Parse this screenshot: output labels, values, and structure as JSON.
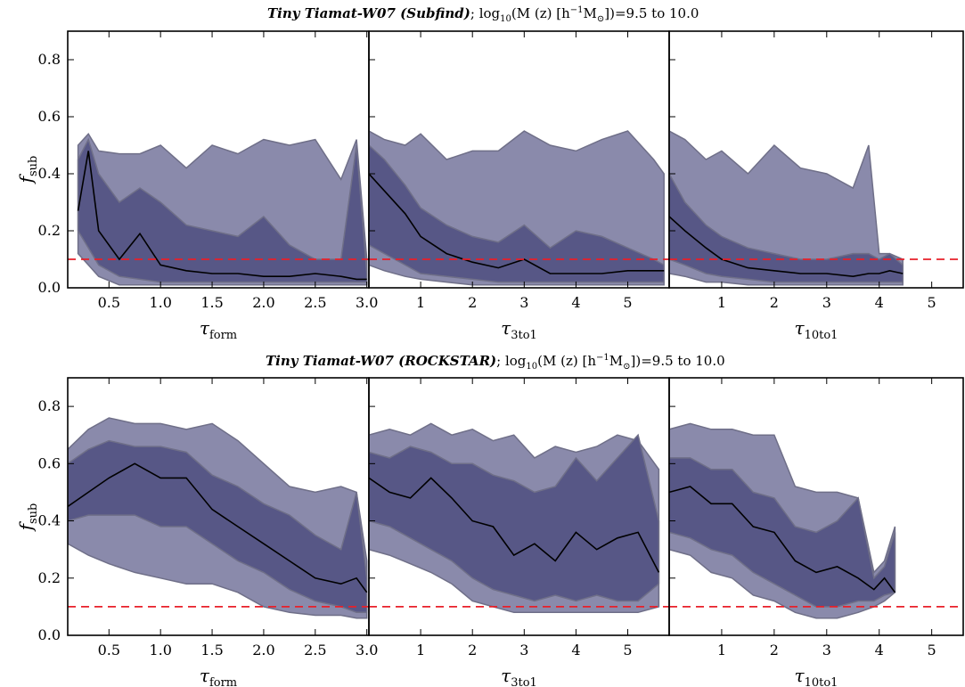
{
  "rows": [
    {
      "title_name": "Tiny Tiamat-W07 (Subfind)",
      "title_sep": "; ",
      "title_mass_label": "log",
      "title_mass_sub": "10",
      "title_mass_expr": "(M (z) [h",
      "title_mass_sup": "−1",
      "title_mass_tail": "M",
      "title_mass_sun": "⊙",
      "title_close": "])",
      "title_range": "=9.5 to 10.0",
      "ylabel": "f",
      "ylabel_sub": "sub"
    },
    {
      "title_name": "Tiny Tiamat-W07 (ROCKSTAR)",
      "title_sep": "; ",
      "title_mass_label": "log",
      "title_mass_sub": "10",
      "title_mass_expr": "(M (z) [h",
      "title_mass_sup": "−1",
      "title_mass_tail": "M",
      "title_mass_sun": "⊙",
      "title_close": "])",
      "title_range": "=9.5 to 10.0",
      "ylabel": "f",
      "ylabel_sub": "sub"
    }
  ],
  "chart_data": [
    {
      "type": "area",
      "panel": "top-left",
      "xlabel": "τ",
      "xlabel_sub": "form",
      "xlim": [
        0.1,
        3.02
      ],
      "ylim": [
        0,
        0.9
      ],
      "xticks": [
        "0.5",
        "1.0",
        "1.5",
        "2.0",
        "2.5",
        "3.0"
      ],
      "xtick_values": [
        0.5,
        1.0,
        1.5,
        2.0,
        2.5,
        3.0
      ],
      "yticks": [
        "0.0",
        "0.2",
        "0.4",
        "0.6",
        "0.8"
      ],
      "ytick_values": [
        0.0,
        0.2,
        0.4,
        0.6,
        0.8
      ],
      "reference_line": 0.1,
      "x": [
        0.2,
        0.3,
        0.4,
        0.6,
        0.8,
        1.0,
        1.25,
        1.5,
        1.75,
        2.0,
        2.25,
        2.5,
        2.75,
        2.9,
        3.0
      ],
      "outer_low": [
        0.12,
        0.08,
        0.04,
        0.01,
        0.01,
        0.01,
        0.01,
        0.01,
        0.01,
        0.01,
        0.01,
        0.01,
        0.01,
        0.01,
        0.01
      ],
      "outer_high": [
        0.5,
        0.54,
        0.48,
        0.47,
        0.47,
        0.5,
        0.42,
        0.5,
        0.47,
        0.52,
        0.5,
        0.52,
        0.38,
        0.52,
        0.1
      ],
      "inner_low": [
        0.2,
        0.14,
        0.08,
        0.04,
        0.03,
        0.02,
        0.02,
        0.02,
        0.02,
        0.02,
        0.02,
        0.02,
        0.02,
        0.02,
        0.02
      ],
      "inner_high": [
        0.45,
        0.52,
        0.4,
        0.3,
        0.35,
        0.3,
        0.22,
        0.2,
        0.18,
        0.25,
        0.15,
        0.1,
        0.1,
        0.5,
        0.05
      ],
      "median": [
        0.27,
        0.48,
        0.2,
        0.1,
        0.19,
        0.08,
        0.06,
        0.05,
        0.05,
        0.04,
        0.04,
        0.05,
        0.04,
        0.03,
        0.03
      ]
    },
    {
      "type": "area",
      "panel": "top-middle",
      "xlabel": "τ",
      "xlabel_sub": "3to1",
      "xlim": [
        0.0,
        5.8
      ],
      "ylim": [
        0,
        0.9
      ],
      "xticks": [
        "1",
        "2",
        "3",
        "4",
        "5"
      ],
      "xtick_values": [
        1,
        2,
        3,
        4,
        5
      ],
      "reference_line": 0.1,
      "x": [
        0.0,
        0.3,
        0.7,
        1.0,
        1.5,
        2.0,
        2.5,
        3.0,
        3.5,
        4.0,
        4.5,
        5.0,
        5.5,
        5.7
      ],
      "outer_low": [
        0.08,
        0.06,
        0.04,
        0.03,
        0.02,
        0.01,
        0.01,
        0.01,
        0.01,
        0.01,
        0.01,
        0.01,
        0.01,
        0.01
      ],
      "outer_high": [
        0.55,
        0.52,
        0.5,
        0.54,
        0.45,
        0.48,
        0.48,
        0.55,
        0.5,
        0.48,
        0.52,
        0.55,
        0.45,
        0.4
      ],
      "inner_low": [
        0.15,
        0.12,
        0.08,
        0.05,
        0.04,
        0.03,
        0.02,
        0.02,
        0.02,
        0.02,
        0.02,
        0.02,
        0.02,
        0.02
      ],
      "inner_high": [
        0.5,
        0.45,
        0.36,
        0.28,
        0.22,
        0.18,
        0.16,
        0.22,
        0.14,
        0.2,
        0.18,
        0.14,
        0.1,
        0.08
      ],
      "median": [
        0.4,
        0.34,
        0.26,
        0.18,
        0.12,
        0.09,
        0.07,
        0.1,
        0.05,
        0.05,
        0.05,
        0.06,
        0.06,
        0.06
      ]
    },
    {
      "type": "area",
      "panel": "top-right",
      "xlabel": "τ",
      "xlabel_sub": "10to1",
      "xlim": [
        0.0,
        5.6
      ],
      "ylim": [
        0,
        0.9
      ],
      "xticks": [
        "1",
        "2",
        "3",
        "4",
        "5"
      ],
      "xtick_values": [
        1,
        2,
        3,
        4,
        5
      ],
      "reference_line": 0.1,
      "x": [
        0.0,
        0.3,
        0.7,
        1.0,
        1.5,
        2.0,
        2.5,
        3.0,
        3.5,
        3.8,
        4.0,
        4.2,
        4.45
      ],
      "outer_low": [
        0.05,
        0.04,
        0.02,
        0.02,
        0.01,
        0.01,
        0.01,
        0.01,
        0.01,
        0.01,
        0.01,
        0.01,
        0.01
      ],
      "outer_high": [
        0.55,
        0.52,
        0.45,
        0.48,
        0.4,
        0.5,
        0.42,
        0.4,
        0.35,
        0.5,
        0.12,
        0.12,
        0.1
      ],
      "inner_low": [
        0.1,
        0.08,
        0.05,
        0.04,
        0.03,
        0.02,
        0.02,
        0.02,
        0.02,
        0.02,
        0.02,
        0.02,
        0.02
      ],
      "inner_high": [
        0.4,
        0.3,
        0.22,
        0.18,
        0.14,
        0.12,
        0.1,
        0.1,
        0.12,
        0.12,
        0.1,
        0.12,
        0.08
      ],
      "median": [
        0.25,
        0.2,
        0.14,
        0.1,
        0.07,
        0.06,
        0.05,
        0.05,
        0.04,
        0.05,
        0.05,
        0.06,
        0.05
      ]
    },
    {
      "type": "area",
      "panel": "bottom-left",
      "xlabel": "τ",
      "xlabel_sub": "form",
      "xlim": [
        0.1,
        3.02
      ],
      "ylim": [
        0,
        0.9
      ],
      "xticks": [
        "0.5",
        "1.0",
        "1.5",
        "2.0",
        "2.5",
        "3.0"
      ],
      "xtick_values": [
        0.5,
        1.0,
        1.5,
        2.0,
        2.5,
        3.0
      ],
      "yticks": [
        "0.0",
        "0.2",
        "0.4",
        "0.6",
        "0.8"
      ],
      "ytick_values": [
        0.0,
        0.2,
        0.4,
        0.6,
        0.8
      ],
      "reference_line": 0.1,
      "x": [
        0.1,
        0.3,
        0.5,
        0.75,
        1.0,
        1.25,
        1.5,
        1.75,
        2.0,
        2.25,
        2.5,
        2.75,
        2.9,
        3.0
      ],
      "outer_low": [
        0.32,
        0.28,
        0.25,
        0.22,
        0.2,
        0.18,
        0.18,
        0.15,
        0.1,
        0.08,
        0.07,
        0.07,
        0.06,
        0.06
      ],
      "outer_high": [
        0.65,
        0.72,
        0.76,
        0.74,
        0.74,
        0.72,
        0.74,
        0.68,
        0.6,
        0.52,
        0.5,
        0.52,
        0.5,
        0.26
      ],
      "inner_low": [
        0.4,
        0.42,
        0.42,
        0.42,
        0.38,
        0.38,
        0.32,
        0.26,
        0.22,
        0.16,
        0.12,
        0.1,
        0.08,
        0.08
      ],
      "inner_high": [
        0.6,
        0.65,
        0.68,
        0.66,
        0.66,
        0.64,
        0.56,
        0.52,
        0.46,
        0.42,
        0.35,
        0.3,
        0.5,
        0.2
      ],
      "median": [
        0.45,
        0.5,
        0.55,
        0.6,
        0.55,
        0.55,
        0.44,
        0.38,
        0.32,
        0.26,
        0.2,
        0.18,
        0.2,
        0.15
      ]
    },
    {
      "type": "area",
      "panel": "bottom-middle",
      "xlabel": "τ",
      "xlabel_sub": "3to1",
      "xlim": [
        0.0,
        5.8
      ],
      "ylim": [
        0,
        0.9
      ],
      "xticks": [
        "1",
        "2",
        "3",
        "4",
        "5"
      ],
      "xtick_values": [
        1,
        2,
        3,
        4,
        5
      ],
      "reference_line": 0.1,
      "x": [
        0.0,
        0.4,
        0.8,
        1.2,
        1.6,
        2.0,
        2.4,
        2.8,
        3.2,
        3.6,
        4.0,
        4.4,
        4.8,
        5.2,
        5.6
      ],
      "outer_low": [
        0.3,
        0.28,
        0.25,
        0.22,
        0.18,
        0.12,
        0.1,
        0.08,
        0.08,
        0.08,
        0.08,
        0.08,
        0.08,
        0.08,
        0.1
      ],
      "outer_high": [
        0.7,
        0.72,
        0.7,
        0.74,
        0.7,
        0.72,
        0.68,
        0.7,
        0.62,
        0.66,
        0.64,
        0.66,
        0.7,
        0.68,
        0.58
      ],
      "inner_low": [
        0.4,
        0.38,
        0.34,
        0.3,
        0.26,
        0.2,
        0.16,
        0.14,
        0.12,
        0.14,
        0.12,
        0.14,
        0.12,
        0.12,
        0.18
      ],
      "inner_high": [
        0.64,
        0.62,
        0.66,
        0.64,
        0.6,
        0.6,
        0.56,
        0.54,
        0.5,
        0.52,
        0.62,
        0.54,
        0.62,
        0.7,
        0.4
      ],
      "median": [
        0.55,
        0.5,
        0.48,
        0.55,
        0.48,
        0.4,
        0.38,
        0.28,
        0.32,
        0.26,
        0.36,
        0.3,
        0.34,
        0.36,
        0.22
      ]
    },
    {
      "type": "area",
      "panel": "bottom-right",
      "xlabel": "τ",
      "xlabel_sub": "10to1",
      "xlim": [
        0.0,
        5.6
      ],
      "ylim": [
        0,
        0.9
      ],
      "xticks": [
        "1",
        "2",
        "3",
        "4",
        "5"
      ],
      "xtick_values": [
        1,
        2,
        3,
        4,
        5
      ],
      "reference_line": 0.1,
      "x": [
        0.0,
        0.4,
        0.8,
        1.2,
        1.6,
        2.0,
        2.4,
        2.8,
        3.2,
        3.6,
        3.9,
        4.1,
        4.3
      ],
      "outer_low": [
        0.3,
        0.28,
        0.22,
        0.2,
        0.14,
        0.12,
        0.08,
        0.06,
        0.06,
        0.08,
        0.1,
        0.12,
        0.15
      ],
      "outer_high": [
        0.72,
        0.74,
        0.72,
        0.72,
        0.7,
        0.7,
        0.52,
        0.5,
        0.5,
        0.48,
        0.22,
        0.26,
        0.38
      ],
      "inner_low": [
        0.36,
        0.34,
        0.3,
        0.28,
        0.22,
        0.18,
        0.14,
        0.1,
        0.1,
        0.12,
        0.12,
        0.14,
        0.15
      ],
      "inner_high": [
        0.62,
        0.62,
        0.58,
        0.58,
        0.5,
        0.48,
        0.38,
        0.36,
        0.4,
        0.48,
        0.2,
        0.24,
        0.36
      ],
      "median": [
        0.5,
        0.52,
        0.46,
        0.46,
        0.38,
        0.36,
        0.26,
        0.22,
        0.24,
        0.2,
        0.16,
        0.2,
        0.15
      ]
    }
  ],
  "colors": {
    "outer_band": "#8a8aab",
    "inner_band": "#575786",
    "band_edge": "#6f6f88",
    "median_line": "#000000",
    "reference_line": "#e8202a",
    "axis": "#000000"
  }
}
